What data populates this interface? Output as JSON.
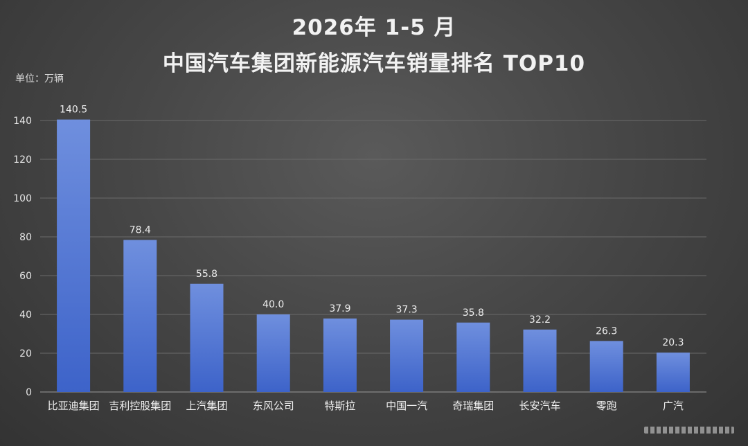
{
  "title_line1": "2026年 1-5 月",
  "title_line2": "中国汽车集团新能源汽车销量排名  TOP10",
  "unit_label": "单位：万辆",
  "colors": {
    "bar_top": "#6f8fde",
    "bar_bottom": "#3d63c9",
    "background": "#474747"
  },
  "chart_data": {
    "type": "bar",
    "categories": [
      "比亚迪集团",
      "吉利控股集团",
      "上汽集团",
      "东风公司",
      "特斯拉",
      "中国一汽",
      "奇瑞集团",
      "长安汽车",
      "零跑",
      "广汽"
    ],
    "values": [
      140.5,
      78.4,
      55.8,
      40.0,
      37.9,
      37.3,
      35.8,
      32.2,
      26.3,
      20.3
    ],
    "value_labels": [
      "140.5",
      "78.4",
      "55.8",
      "40.0",
      "37.9",
      "37.3",
      "35.8",
      "32.2",
      "26.3",
      "20.3"
    ],
    "title": "2026年 1-5 月 中国汽车集团新能源汽车销量排名  TOP10",
    "xlabel": "",
    "ylabel": "单位：万辆",
    "ylim": [
      0,
      140
    ],
    "yticks": [
      0,
      20,
      40,
      60,
      80,
      100,
      120,
      140
    ],
    "grid": true,
    "legend": "none"
  }
}
